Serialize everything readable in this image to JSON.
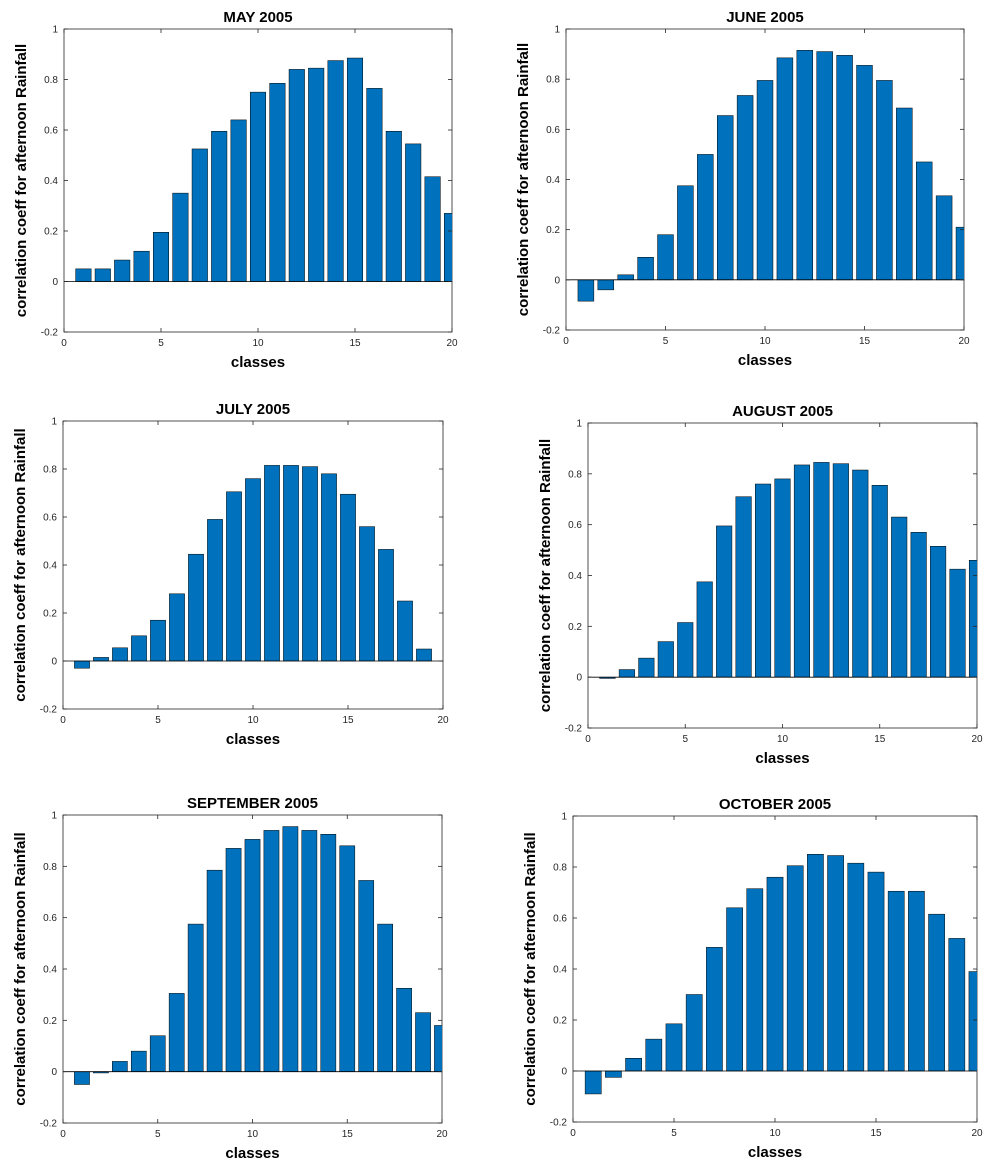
{
  "figure": {
    "bar_color": "#0072BD",
    "bar_edge_color": "#000000",
    "axes_color": "#262626"
  },
  "chart_data": [
    {
      "type": "bar",
      "title": "MAY 2005",
      "xlabel": "classes",
      "ylabel": "correlation coeff for afternoon Rainfall",
      "xlim": [
        0,
        20
      ],
      "ylim": [
        -0.2,
        1
      ],
      "xticks": [
        0,
        5,
        10,
        15,
        20
      ],
      "yticks": [
        -0.2,
        0,
        0.2,
        0.4,
        0.6,
        0.8,
        1
      ],
      "grid": false,
      "categories": [
        1,
        2,
        3,
        4,
        5,
        6,
        7,
        8,
        9,
        10,
        11,
        12,
        13,
        14,
        15,
        16,
        17,
        18,
        19,
        20
      ],
      "values": [
        0.05,
        0.05,
        0.085,
        0.12,
        0.195,
        0.35,
        0.525,
        0.595,
        0.64,
        0.75,
        0.785,
        0.84,
        0.845,
        0.875,
        0.885,
        0.765,
        0.595,
        0.545,
        0.415,
        0.27
      ]
    },
    {
      "type": "bar",
      "title": "JUNE 2005",
      "xlabel": "classes",
      "ylabel": "correlation coeff for afternoon Rainfall",
      "xlim": [
        0,
        20
      ],
      "ylim": [
        -0.2,
        1
      ],
      "xticks": [
        0,
        5,
        10,
        15,
        20
      ],
      "yticks": [
        -0.2,
        0,
        0.2,
        0.4,
        0.6,
        0.8,
        1
      ],
      "grid": false,
      "categories": [
        1,
        2,
        3,
        4,
        5,
        6,
        7,
        8,
        9,
        10,
        11,
        12,
        13,
        14,
        15,
        16,
        17,
        18,
        19,
        20
      ],
      "values": [
        -0.085,
        -0.04,
        0.02,
        0.09,
        0.18,
        0.375,
        0.5,
        0.655,
        0.735,
        0.795,
        0.885,
        0.915,
        0.91,
        0.895,
        0.855,
        0.795,
        0.685,
        0.47,
        0.335,
        0.21
      ]
    },
    {
      "type": "bar",
      "title": "JULY 2005",
      "xlabel": "classes",
      "ylabel": "correlation coeff for afternoon Rainfall",
      "xlim": [
        0,
        20
      ],
      "ylim": [
        -0.2,
        1
      ],
      "xticks": [
        0,
        5,
        10,
        15,
        20
      ],
      "yticks": [
        -0.2,
        0,
        0.2,
        0.4,
        0.6,
        0.8,
        1
      ],
      "grid": false,
      "categories": [
        1,
        2,
        3,
        4,
        5,
        6,
        7,
        8,
        9,
        10,
        11,
        12,
        13,
        14,
        15,
        16,
        17,
        18,
        19
      ],
      "values": [
        -0.03,
        0.015,
        0.055,
        0.105,
        0.17,
        0.28,
        0.445,
        0.59,
        0.705,
        0.76,
        0.815,
        0.815,
        0.81,
        0.78,
        0.695,
        0.56,
        0.465,
        0.25,
        0.05
      ]
    },
    {
      "type": "bar",
      "title": "AUGUST 2005",
      "xlabel": "classes",
      "ylabel": "correlation coeff for afternoon Rainfall",
      "xlim": [
        0,
        20
      ],
      "ylim": [
        -0.2,
        1
      ],
      "xticks": [
        0,
        5,
        10,
        15,
        20
      ],
      "yticks": [
        -0.2,
        0,
        0.2,
        0.4,
        0.6,
        0.8,
        1
      ],
      "grid": false,
      "categories": [
        1,
        2,
        3,
        4,
        5,
        6,
        7,
        8,
        9,
        10,
        11,
        12,
        13,
        14,
        15,
        16,
        17,
        18,
        19,
        20
      ],
      "values": [
        -0.005,
        0.03,
        0.075,
        0.14,
        0.215,
        0.375,
        0.595,
        0.71,
        0.76,
        0.78,
        0.835,
        0.845,
        0.84,
        0.815,
        0.755,
        0.63,
        0.57,
        0.515,
        0.425,
        0.46
      ]
    },
    {
      "type": "bar",
      "title": "SEPTEMBER 2005",
      "xlabel": "classes",
      "ylabel": "correlation coeff for afternoon Rainfall",
      "xlim": [
        0,
        20
      ],
      "ylim": [
        -0.2,
        1
      ],
      "xticks": [
        0,
        5,
        10,
        15,
        20
      ],
      "yticks": [
        -0.2,
        0,
        0.2,
        0.4,
        0.6,
        0.8,
        1
      ],
      "grid": false,
      "categories": [
        1,
        2,
        3,
        4,
        5,
        6,
        7,
        8,
        9,
        10,
        11,
        12,
        13,
        14,
        15,
        16,
        17,
        18,
        19,
        20
      ],
      "values": [
        -0.05,
        -0.005,
        0.04,
        0.08,
        0.14,
        0.305,
        0.575,
        0.785,
        0.87,
        0.905,
        0.94,
        0.955,
        0.94,
        0.925,
        0.88,
        0.745,
        0.575,
        0.325,
        0.23,
        0.18
      ]
    },
    {
      "type": "bar",
      "title": "OCTOBER 2005",
      "xlabel": "classes",
      "ylabel": "correlation coeff for afternoon Rainfall",
      "xlim": [
        0,
        20
      ],
      "ylim": [
        -0.2,
        1
      ],
      "xticks": [
        0,
        5,
        10,
        15,
        20
      ],
      "yticks": [
        -0.2,
        0,
        0.2,
        0.4,
        0.6,
        0.8,
        1
      ],
      "grid": false,
      "categories": [
        1,
        2,
        3,
        4,
        5,
        6,
        7,
        8,
        9,
        10,
        11,
        12,
        13,
        14,
        15,
        16,
        17,
        18,
        19,
        20
      ],
      "values": [
        -0.09,
        -0.025,
        0.05,
        0.125,
        0.185,
        0.3,
        0.485,
        0.64,
        0.715,
        0.76,
        0.805,
        0.85,
        0.845,
        0.815,
        0.78,
        0.705,
        0.705,
        0.615,
        0.52,
        0.39
      ]
    }
  ]
}
